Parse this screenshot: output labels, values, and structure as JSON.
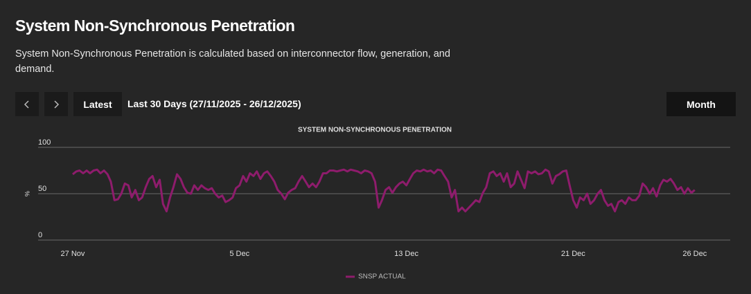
{
  "header": {
    "title": "System Non-Synchronous Penetration",
    "description": "System Non-Synchronous Penetration is calculated based on interconnector flow, generation, and demand."
  },
  "controls": {
    "latest": "Latest",
    "range": "Last 30 Days (27/11/2025 - 26/12/2025)",
    "period": "Month"
  },
  "chart_data": {
    "type": "line",
    "title": "SYSTEM NON-SYNCHRONOUS PENETRATION",
    "ylabel": "%",
    "x": [
      0,
      0.17,
      0.33,
      0.5,
      0.67,
      0.83,
      1,
      1.17,
      1.33,
      1.5,
      1.67,
      1.83,
      2,
      2.17,
      2.33,
      2.5,
      2.67,
      2.83,
      3,
      3.17,
      3.33,
      3.5,
      3.67,
      3.83,
      4,
      4.17,
      4.33,
      4.5,
      4.67,
      4.83,
      5,
      5.17,
      5.33,
      5.5,
      5.67,
      5.83,
      6,
      6.17,
      6.33,
      6.5,
      6.67,
      6.83,
      7,
      7.17,
      7.33,
      7.5,
      7.67,
      7.83,
      8,
      8.17,
      8.33,
      8.5,
      8.67,
      8.83,
      9,
      9.17,
      9.33,
      9.5,
      9.67,
      9.83,
      10,
      10.17,
      10.33,
      10.5,
      10.67,
      10.83,
      11,
      11.17,
      11.33,
      11.5,
      11.67,
      11.83,
      12,
      12.17,
      12.33,
      12.5,
      12.67,
      12.83,
      13,
      13.17,
      13.33,
      13.5,
      13.67,
      13.83,
      14,
      14.17,
      14.33,
      14.5,
      14.67,
      14.83,
      15,
      15.17,
      15.33,
      15.5,
      15.67,
      15.83,
      16,
      16.17,
      16.33,
      16.5,
      16.67,
      16.83,
      17,
      17.17,
      17.33,
      17.5,
      17.67,
      17.83,
      18,
      18.17,
      18.33,
      18.5,
      18.67,
      18.83,
      19,
      19.17,
      19.33,
      19.5,
      19.67,
      19.83,
      20,
      20.17,
      20.33,
      20.5,
      20.67,
      20.83,
      21,
      21.17,
      21.33,
      21.5,
      21.67,
      21.83,
      22,
      22.17,
      22.33,
      22.5,
      22.67,
      22.83,
      23,
      23.17,
      23.33,
      23.5,
      23.67,
      23.83,
      24,
      24.17,
      24.33,
      24.5,
      24.67,
      24.83,
      25,
      25.17,
      25.33,
      25.5,
      25.67,
      25.83,
      26,
      26.17,
      26.33,
      26.5,
      26.67,
      26.83,
      27,
      27.17,
      27.33,
      27.5,
      27.67,
      27.83,
      28,
      28.17,
      28.33,
      28.5,
      28.67,
      28.83,
      29,
      29.17,
      29.33,
      29.5,
      29.67,
      29.83
    ],
    "series": [
      {
        "name": "SNSP ACTUAL",
        "color": "#8e1c6c",
        "values": [
          71,
          74,
          75,
          72,
          75,
          72,
          75,
          76,
          72,
          75,
          71,
          63,
          43,
          44,
          50,
          61,
          59,
          46,
          54,
          43,
          46,
          57,
          66,
          69,
          57,
          65,
          39,
          31,
          46,
          57,
          71,
          66,
          57,
          51,
          50,
          59,
          54,
          59,
          56,
          54,
          56,
          50,
          46,
          48,
          41,
          43,
          46,
          56,
          59,
          69,
          63,
          72,
          69,
          74,
          66,
          72,
          74,
          69,
          63,
          54,
          50,
          44,
          51,
          54,
          56,
          63,
          69,
          63,
          57,
          61,
          57,
          63,
          72,
          72,
          75,
          75,
          74,
          75,
          76,
          74,
          76,
          75,
          74,
          72,
          75,
          74,
          72,
          63,
          35,
          43,
          54,
          57,
          51,
          57,
          61,
          63,
          59,
          66,
          72,
          75,
          74,
          76,
          74,
          75,
          72,
          76,
          75,
          69,
          63,
          46,
          54,
          31,
          35,
          31,
          35,
          39,
          43,
          41,
          51,
          57,
          72,
          74,
          69,
          72,
          63,
          72,
          57,
          61,
          74,
          65,
          56,
          74,
          72,
          74,
          71,
          72,
          76,
          74,
          61,
          69,
          71,
          74,
          75,
          59,
          43,
          35,
          46,
          43,
          50,
          39,
          43,
          50,
          54,
          43,
          37,
          39,
          31,
          41,
          43,
          39,
          46,
          43,
          43,
          48,
          61,
          57,
          50,
          56,
          47,
          59,
          65,
          63,
          66,
          61,
          54,
          57,
          50,
          56,
          51,
          54
        ]
      }
    ],
    "xlim": [
      -1.66,
      31.53
    ],
    "xticks": [
      {
        "value": 0,
        "label": "27 Nov"
      },
      {
        "value": 8,
        "label": "5 Dec"
      },
      {
        "value": 16,
        "label": "13 Dec"
      },
      {
        "value": 24,
        "label": "21 Dec"
      },
      {
        "value": 29.83,
        "label": "26 Dec"
      }
    ],
    "ylim": [
      0,
      100
    ],
    "yticks": [
      0,
      50,
      100
    ],
    "grid": true,
    "legend": "bottom"
  }
}
